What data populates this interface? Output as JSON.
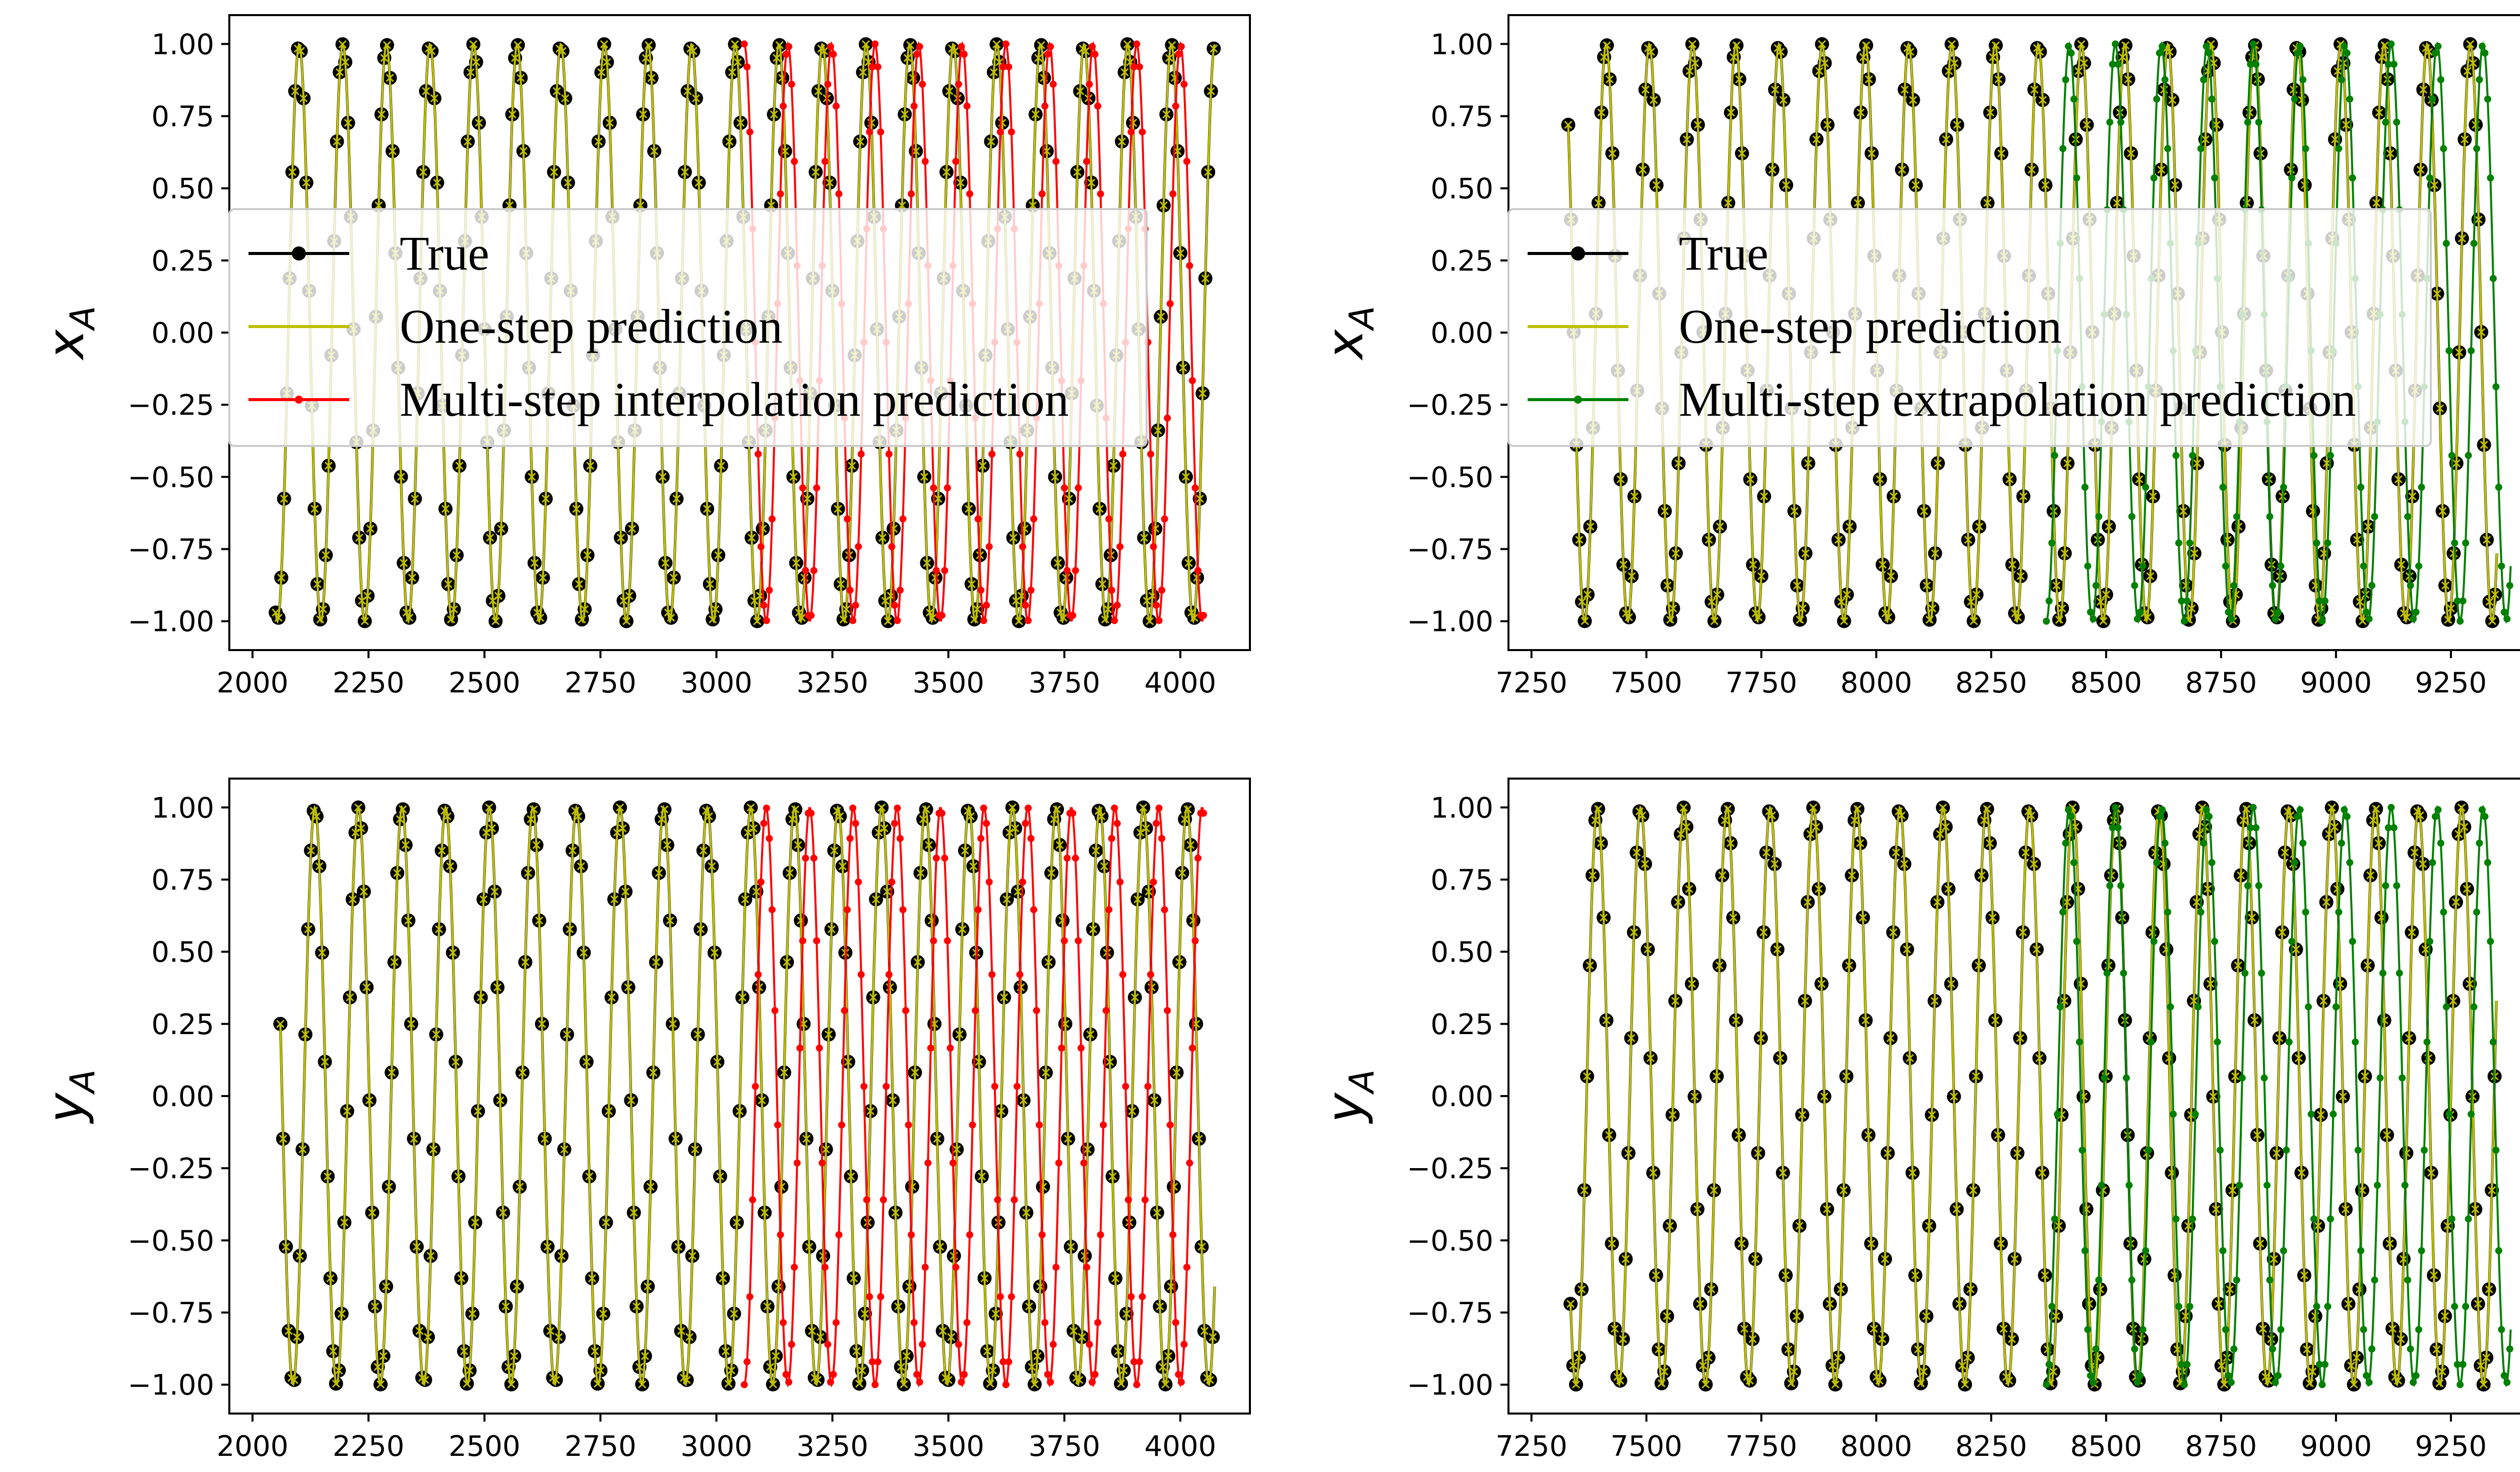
{
  "colors": {
    "true": "#000000",
    "one_step": "#bfbf00",
    "interpolation": "#ff0000",
    "extrapolation": "#008000"
  },
  "legend_labels": {
    "true": "True",
    "one_step": "One-step prediction",
    "interpolation": "Multi-step interpolation prediction",
    "extrapolation": "Multi-step extrapolation prediction"
  },
  "chart_data": [
    {
      "type": "line",
      "panel": "top-left",
      "ylabel_base": "x",
      "ylabel_sub": "A",
      "xlim": [
        1950,
        4150
      ],
      "ylim": [
        -1.1,
        1.1
      ],
      "xticks": [
        "2000",
        "2250",
        "2500",
        "2750",
        "3000",
        "3250",
        "3500",
        "3750",
        "4000"
      ],
      "yticks": [
        "−1.00",
        "−0.75",
        "−0.50",
        "−0.25",
        "0.00",
        "0.25",
        "0.50",
        "0.75",
        "1.00"
      ],
      "legend": {
        "placement": "center-left",
        "entries": [
          "true",
          "one_step",
          "interpolation"
        ]
      },
      "series": [
        {
          "key": "true",
          "name": "True",
          "x_start": 2050,
          "x_end": 4075,
          "period": 94,
          "start_value": -0.97,
          "sample_step": 6
        },
        {
          "key": "one_step",
          "name": "One-step prediction",
          "x_start": 2050,
          "x_end": 4075,
          "period": 94,
          "start_value": -0.97,
          "sample_step": 6
        },
        {
          "key": "interpolation",
          "name": "Multi-step interpolation prediction",
          "x_start": 3060,
          "x_end": 4050,
          "period": 94,
          "start_value": 1.0,
          "sample_step": 6
        }
      ]
    },
    {
      "type": "line",
      "panel": "top-right",
      "ylabel_base": "x",
      "ylabel_sub": "A",
      "xlim": [
        7200,
        9420
      ],
      "ylim": [
        -1.1,
        1.1
      ],
      "xticks": [
        "7250",
        "7500",
        "7750",
        "8000",
        "8250",
        "8500",
        "8750",
        "9000",
        "9250"
      ],
      "yticks": [
        "−1.00",
        "−0.75",
        "−0.50",
        "−0.25",
        "0.00",
        "0.25",
        "0.50",
        "0.75",
        "1.00"
      ],
      "legend": {
        "placement": "center-left",
        "entries": [
          "true",
          "one_step",
          "extrapolation"
        ]
      },
      "series": [
        {
          "key": "true",
          "name": "True",
          "x_start": 7330,
          "x_end": 9350,
          "period": 94,
          "start_value": 0.72,
          "sample_step": 6
        },
        {
          "key": "one_step",
          "name": "One-step prediction",
          "x_start": 7330,
          "x_end": 9350,
          "period": 94,
          "start_value": 0.72,
          "sample_step": 6
        },
        {
          "key": "extrapolation",
          "name": "Multi-step extrapolation prediction",
          "x_start": 8370,
          "x_end": 9380,
          "period": 100,
          "start_value": -1.0,
          "sample_step": 6
        }
      ]
    },
    {
      "type": "line",
      "panel": "bottom-left",
      "ylabel_base": "y",
      "ylabel_sub": "A",
      "xlim": [
        1950,
        4150
      ],
      "ylim": [
        -1.1,
        1.1
      ],
      "xticks": [
        "2000",
        "2250",
        "2500",
        "2750",
        "3000",
        "3250",
        "3500",
        "3750",
        "4000"
      ],
      "yticks": [
        "−1.00",
        "−0.75",
        "−0.50",
        "−0.25",
        "0.00",
        "0.25",
        "0.50",
        "0.75",
        "1.00"
      ],
      "series": [
        {
          "key": "true",
          "name": "True",
          "x_start": 2060,
          "x_end": 4075,
          "period": 94,
          "start_value": 0.25,
          "sample_step": 6
        },
        {
          "key": "one_step",
          "name": "One-step prediction",
          "x_start": 2060,
          "x_end": 4075,
          "period": 94,
          "start_value": 0.25,
          "sample_step": 6
        },
        {
          "key": "interpolation",
          "name": "Multi-step interpolation prediction",
          "x_start": 3060,
          "x_end": 4050,
          "period": 94,
          "start_value": -1.0,
          "sample_step": 6
        }
      ]
    },
    {
      "type": "line",
      "panel": "bottom-right",
      "ylabel_base": "y",
      "ylabel_sub": "A",
      "xlim": [
        7200,
        9420
      ],
      "ylim": [
        -1.1,
        1.1
      ],
      "xticks": [
        "7250",
        "7500",
        "7750",
        "8000",
        "8250",
        "8500",
        "8750",
        "9000",
        "9250"
      ],
      "yticks": [
        "−1.00",
        "−0.75",
        "−0.50",
        "−0.25",
        "0.00",
        "0.25",
        "0.50",
        "0.75",
        "1.00"
      ],
      "series": [
        {
          "key": "true",
          "name": "True",
          "x_start": 7335,
          "x_end": 9350,
          "period": 94,
          "start_value": -0.72,
          "sample_step": 6
        },
        {
          "key": "one_step",
          "name": "One-step prediction",
          "x_start": 7335,
          "x_end": 9350,
          "period": 94,
          "start_value": -0.72,
          "sample_step": 6
        },
        {
          "key": "extrapolation",
          "name": "Multi-step extrapolation prediction",
          "x_start": 8370,
          "x_end": 9380,
          "period": 100,
          "start_value": -1.0,
          "sample_step": 6
        }
      ]
    }
  ]
}
